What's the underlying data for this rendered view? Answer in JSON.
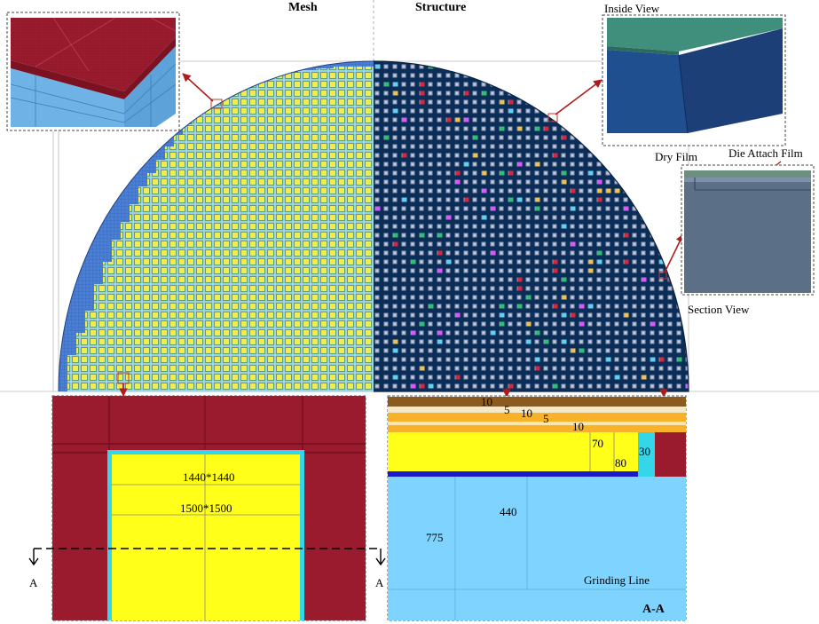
{
  "headings": {
    "mesh": "Mesh",
    "structure": "Structure"
  },
  "callouts": {
    "inside_view": "Inside View",
    "dry_film": "Dry Film",
    "die_attach_film": "Die Attach Film",
    "section_view": "Section View"
  },
  "mesh_detail": {
    "inner_size": "1440*1440",
    "outer_size": "1500*1500",
    "section_marker": "A"
  },
  "section": {
    "title": "A-A",
    "grinding_line": "Grinding Line",
    "dims": [
      "10",
      "5",
      "10",
      "5",
      "10",
      "70",
      "80",
      "30",
      "440",
      "775"
    ]
  },
  "colors": {
    "dark_red": "#9b1b2e",
    "yellow": "#ffff1a",
    "light_blue": "#7fd3ff",
    "cyan": "#35d5ea",
    "navy": "#0b2e58",
    "mesh_blue": "#4a7fd6",
    "die_fill": "#f2ec54",
    "orange": "#f7b22a",
    "brown": "#8a5a1e",
    "slate": "#5b6f87"
  }
}
